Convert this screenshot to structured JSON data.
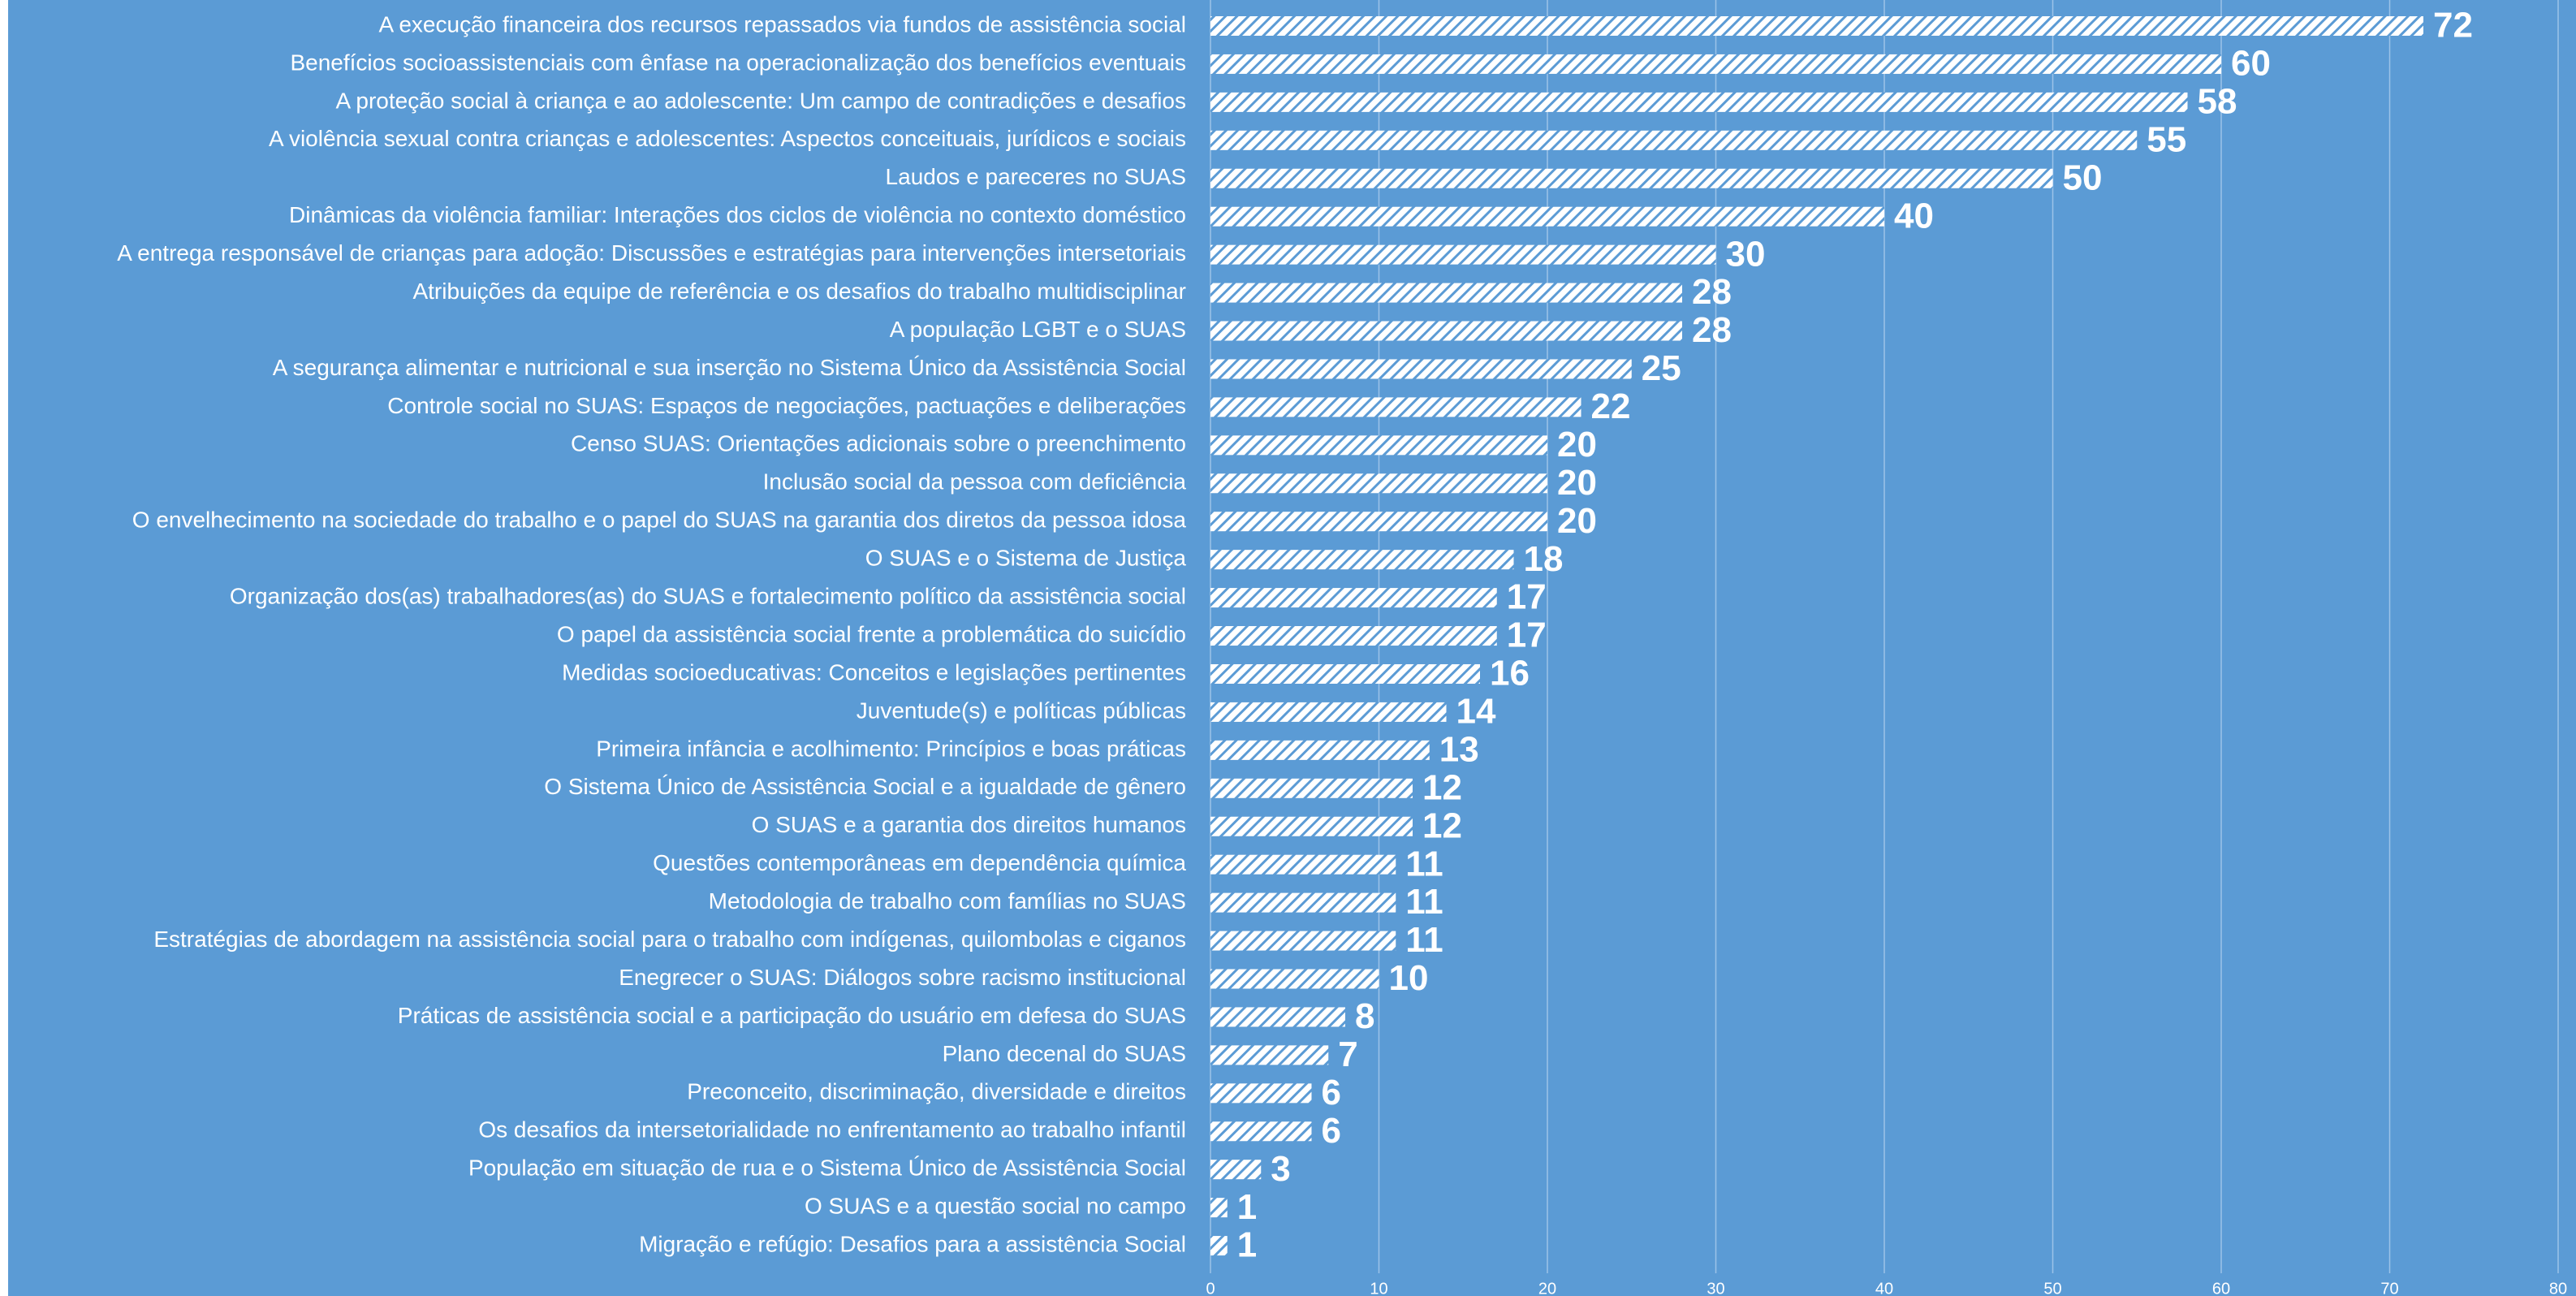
{
  "chart_data": {
    "type": "barh",
    "categories": [
      "A execução financeira dos recursos repassados via fundos de assistência social",
      "Benefícios socioassistenciais com ênfase na operacionalização dos benefícios eventuais",
      "A proteção social à criança e ao adolescente: Um campo de contradições e desafios",
      "A violência sexual contra crianças e adolescentes: Aspectos conceituais, jurídicos e sociais",
      "Laudos e pareceres no SUAS",
      "Dinâmicas da violência familiar: Interações dos ciclos de violência no contexto doméstico",
      "A entrega responsável de crianças para adoção: Discussões e estratégias para intervenções intersetoriais",
      "Atribuições da equipe de referência e os desafios do trabalho multidisciplinar",
      "A população LGBT e o SUAS",
      "A segurança alimentar e nutricional e sua inserção no Sistema Único da Assistência Social",
      "Controle social no SUAS: Espaços de negociações, pactuações e deliberações",
      "Censo SUAS: Orientações adicionais sobre o preenchimento",
      "Inclusão social da pessoa com deficiência",
      "O envelhecimento na sociedade do trabalho e o papel do SUAS na garantia dos diretos da pessoa idosa",
      "O SUAS e o Sistema de Justiça",
      "Organização dos(as) trabalhadores(as) do SUAS e fortalecimento político da assistência social",
      "O papel da assistência social frente a problemática do suicídio",
      "Medidas socioeducativas: Conceitos e legislações pertinentes",
      "Juventude(s) e políticas públicas",
      "Primeira infância e acolhimento: Princípios e boas práticas",
      "O Sistema Único de Assistência Social e a igualdade de gênero",
      "O SUAS e a garantia dos direitos humanos",
      "Questões contemporâneas em dependência química",
      "Metodologia de trabalho com famílias no SUAS",
      "Estratégias de abordagem na assistência social para o trabalho com indígenas, quilombolas e ciganos",
      "Enegrecer o SUAS: Diálogos sobre racismo institucional",
      "Práticas de assistência social e a participação do usuário em defesa do SUAS",
      "Plano decenal do SUAS",
      "Preconceito, discriminação, diversidade e direitos",
      "Os desafios da intersetorialidade no enfrentamento ao trabalho infantil",
      "População em situação de rua e o Sistema Único de Assistência Social",
      "O SUAS e a questão social no campo",
      "Migração e refúgio: Desafios para a assistência Social"
    ],
    "values": [
      72,
      60,
      58,
      55,
      50,
      40,
      30,
      28,
      28,
      25,
      22,
      20,
      20,
      20,
      18,
      17,
      17,
      16,
      14,
      13,
      12,
      12,
      11,
      11,
      11,
      10,
      8,
      7,
      6,
      6,
      3,
      1,
      1
    ],
    "color": "#ffffff",
    "xlim": [
      0,
      80
    ],
    "xticks": [
      0,
      10,
      20,
      30,
      40,
      50,
      60,
      70,
      80
    ],
    "grid": true
  }
}
